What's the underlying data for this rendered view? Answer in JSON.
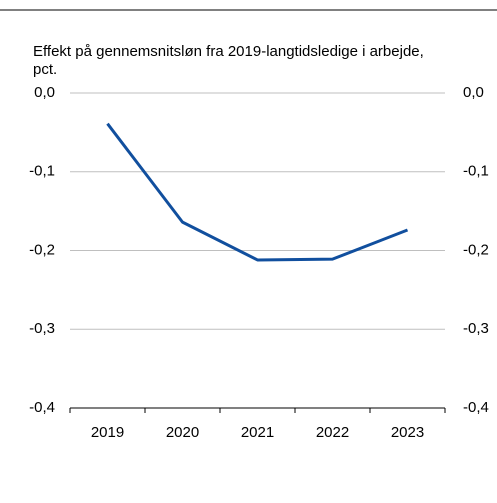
{
  "chart_data": {
    "type": "line",
    "title": "Effekt på gennemsnitsløn fra 2019-langtidsledige i arbejde,",
    "subtitle": "pct.",
    "categories": [
      "2019",
      "2020",
      "2021",
      "2022",
      "2023"
    ],
    "series": [
      {
        "name": "Effekt",
        "color": "#114f9e",
        "values": [
          -0.039,
          -0.164,
          -0.212,
          -0.211,
          -0.174
        ]
      }
    ],
    "ylim": [
      -0.4,
      0
    ],
    "yticks": [
      {
        "value": 0,
        "label": "0,0"
      },
      {
        "value": -0.1,
        "label": "-0,1"
      },
      {
        "value": -0.2,
        "label": "-0,2"
      },
      {
        "value": -0.3,
        "label": "-0,3"
      },
      {
        "value": -0.4,
        "label": "-0,4"
      }
    ],
    "grid": true
  }
}
